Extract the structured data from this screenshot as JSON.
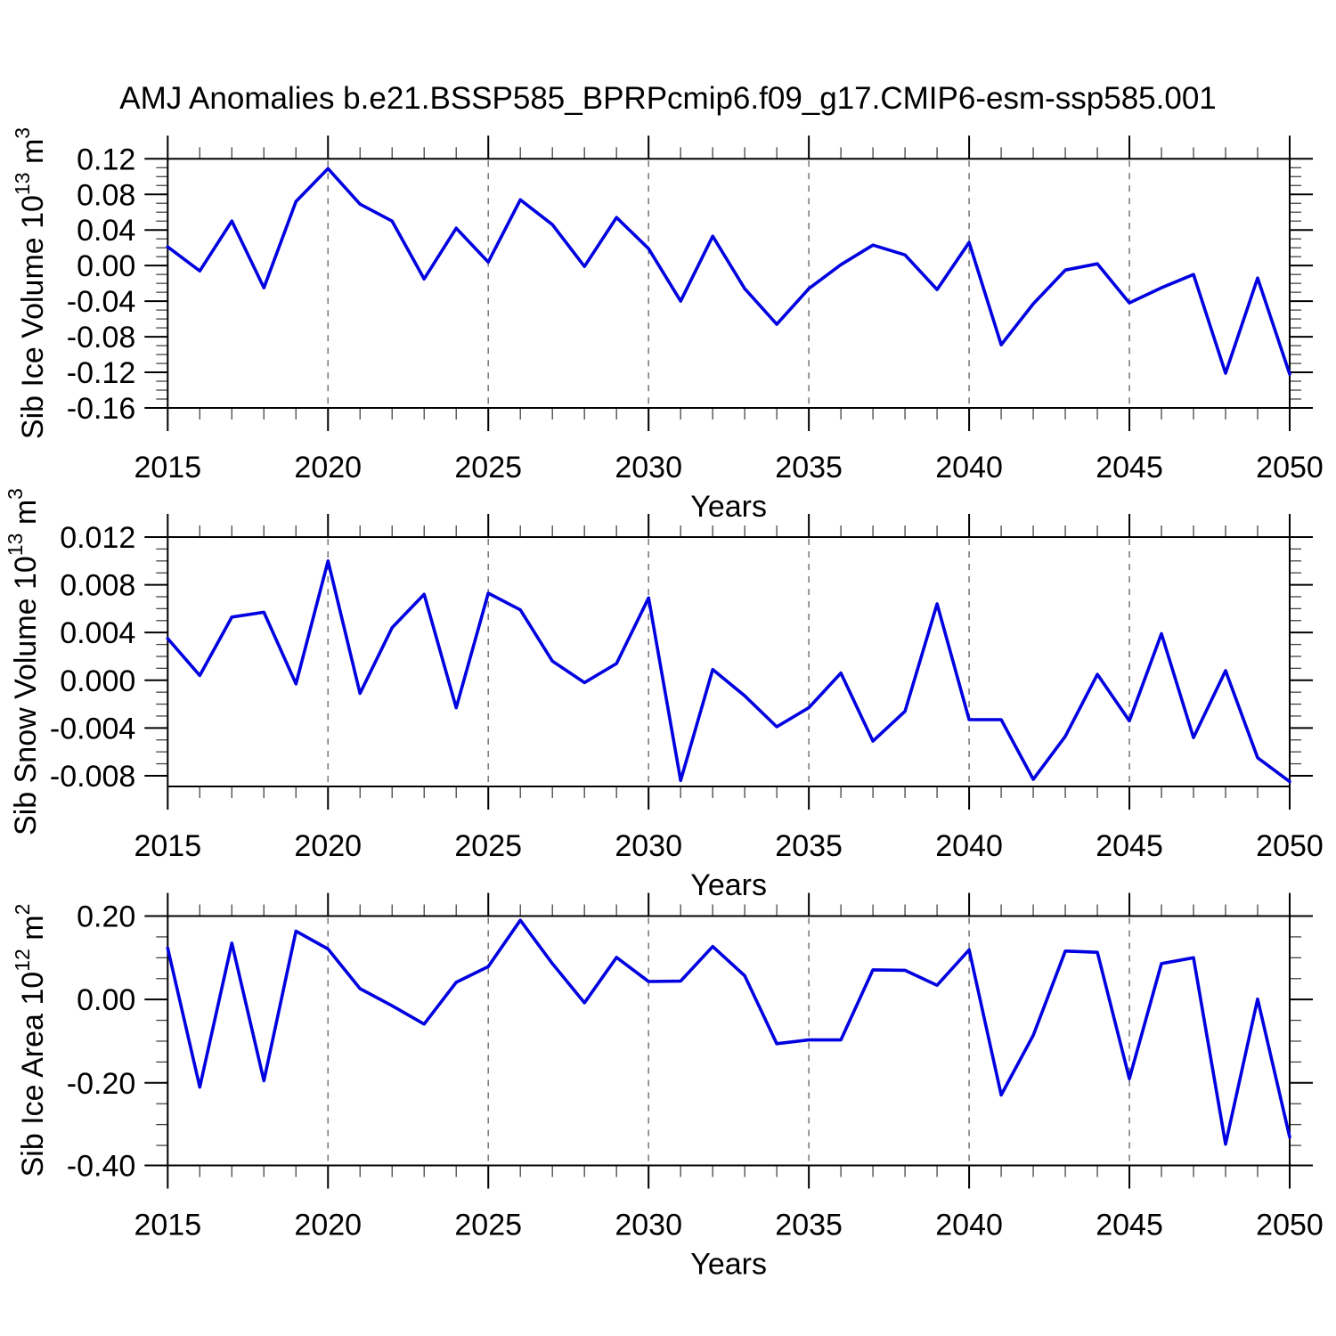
{
  "header": {
    "title": "AMJ Anomalies b.e21.BSSP585_BPRPcmip6.f09_g17.CMIP6-esm-ssp585.001"
  },
  "colors": {
    "line": "#0000e0",
    "grid": "#7d7d7d",
    "frame": "#000000",
    "minor_tick": "#444444",
    "background": "#ffffff"
  },
  "x_axis": {
    "label": "Years",
    "xlim": [
      2015,
      2050
    ],
    "major_years": [
      2015,
      2020,
      2025,
      2030,
      2035,
      2040,
      2045,
      2050
    ],
    "minor_step": 1,
    "grid_years": [
      2020,
      2025,
      2030,
      2035,
      2040,
      2045
    ]
  },
  "chart_data": [
    {
      "type": "line",
      "ylabel": "Sib Ice Volume 10^13 m^3",
      "ylabel_main": "Sib Ice Volume 10",
      "ylabel_exp": "13",
      "ylabel_unit": " m",
      "ylabel_exp2": "3",
      "xlabel": "Years",
      "legend": "none",
      "grid": "vertical-dashed",
      "ylim": [
        -0.16,
        0.12
      ],
      "minor_step": 0.01,
      "yticks": [
        {
          "v": 0.12,
          "label": "0.12"
        },
        {
          "v": 0.08,
          "label": "0.08"
        },
        {
          "v": 0.04,
          "label": "0.04"
        },
        {
          "v": 0.0,
          "label": "0.00"
        },
        {
          "v": -0.04,
          "label": "-0.04"
        },
        {
          "v": -0.08,
          "label": "-0.08"
        },
        {
          "v": -0.12,
          "label": "-0.12"
        },
        {
          "v": -0.16,
          "label": "-0.16"
        }
      ],
      "x": [
        2015,
        2016,
        2017,
        2018,
        2019,
        2020,
        2021,
        2022,
        2023,
        2024,
        2025,
        2026,
        2027,
        2028,
        2029,
        2030,
        2031,
        2032,
        2033,
        2034,
        2035,
        2036,
        2037,
        2038,
        2039,
        2040,
        2041,
        2042,
        2043,
        2044,
        2045,
        2046,
        2047,
        2048,
        2049,
        2050
      ],
      "values": [
        0.021,
        -0.006,
        0.05,
        -0.025,
        0.072,
        0.109,
        0.069,
        0.05,
        -0.015,
        0.042,
        0.004,
        0.074,
        0.046,
        -0.001,
        0.054,
        0.019,
        -0.04,
        0.033,
        -0.026,
        -0.066,
        -0.026,
        0.001,
        0.023,
        0.012,
        -0.027,
        0.026,
        -0.089,
        -0.043,
        -0.005,
        0.002,
        -0.042,
        -0.025,
        -0.01,
        -0.121,
        -0.014,
        -0.122
      ]
    },
    {
      "type": "line",
      "ylabel": "Sib Snow Volume 10^13 m^3",
      "ylabel_main": "Sib Snow Volume 10",
      "ylabel_exp": "13",
      "ylabel_unit": " m",
      "ylabel_exp2": "3",
      "xlabel": "Years",
      "legend": "none",
      "grid": "vertical-dashed",
      "ylim": [
        -0.0089,
        0.012
      ],
      "minor_step": 0.001,
      "yticks": [
        {
          "v": 0.012,
          "label": "0.012"
        },
        {
          "v": 0.008,
          "label": "0.008"
        },
        {
          "v": 0.004,
          "label": "0.004"
        },
        {
          "v": 0.0,
          "label": "0.000"
        },
        {
          "v": -0.004,
          "label": "-0.004"
        },
        {
          "v": -0.008,
          "label": "-0.008"
        }
      ],
      "x": [
        2015,
        2016,
        2017,
        2018,
        2019,
        2020,
        2021,
        2022,
        2023,
        2024,
        2025,
        2026,
        2027,
        2028,
        2029,
        2030,
        2031,
        2032,
        2033,
        2034,
        2035,
        2036,
        2037,
        2038,
        2039,
        2040,
        2041,
        2042,
        2043,
        2044,
        2045,
        2046,
        2047,
        2048,
        2049,
        2050
      ],
      "values": [
        0.0035,
        0.0004,
        0.0053,
        0.0057,
        -0.0003,
        0.01,
        -0.0011,
        0.0044,
        0.0072,
        -0.0023,
        0.0073,
        0.0059,
        0.0016,
        -0.0002,
        0.0014,
        0.0069,
        -0.0084,
        0.0009,
        -0.0013,
        -0.0039,
        -0.0023,
        0.0006,
        -0.0051,
        -0.0026,
        0.0064,
        -0.0033,
        -0.0033,
        -0.0083,
        -0.0047,
        0.0005,
        -0.0034,
        0.0039,
        -0.0048,
        0.0008,
        -0.0065,
        -0.0085
      ]
    },
    {
      "type": "line",
      "ylabel": "Sib Ice Area 10^12 m^2",
      "ylabel_main": "Sib Ice Area 10",
      "ylabel_exp": "12",
      "ylabel_unit": " m",
      "ylabel_exp2": "2",
      "xlabel": "Years",
      "legend": "none",
      "grid": "vertical-dashed",
      "ylim": [
        -0.398,
        0.2
      ],
      "minor_step": 0.05,
      "yticks": [
        {
          "v": 0.2,
          "label": "0.20"
        },
        {
          "v": 0.0,
          "label": "0.00"
        },
        {
          "v": -0.2,
          "label": "-0.20"
        },
        {
          "v": -0.4,
          "label": "-0.40"
        }
      ],
      "x": [
        2015,
        2016,
        2017,
        2018,
        2019,
        2020,
        2021,
        2022,
        2023,
        2024,
        2025,
        2026,
        2027,
        2028,
        2029,
        2030,
        2031,
        2032,
        2033,
        2034,
        2035,
        2036,
        2037,
        2038,
        2039,
        2040,
        2041,
        2042,
        2043,
        2044,
        2045,
        2046,
        2047,
        2048,
        2049,
        2050
      ],
      "values": [
        0.123,
        -0.21,
        0.135,
        -0.195,
        0.164,
        0.121,
        0.026,
        -0.015,
        -0.059,
        0.041,
        0.079,
        0.19,
        0.086,
        -0.008,
        0.101,
        0.043,
        0.044,
        0.127,
        0.057,
        -0.106,
        -0.097,
        -0.097,
        0.071,
        0.07,
        0.034,
        0.119,
        -0.229,
        -0.086,
        0.116,
        0.113,
        -0.19,
        0.086,
        0.1,
        -0.347,
        0.001,
        -0.33
      ]
    }
  ]
}
